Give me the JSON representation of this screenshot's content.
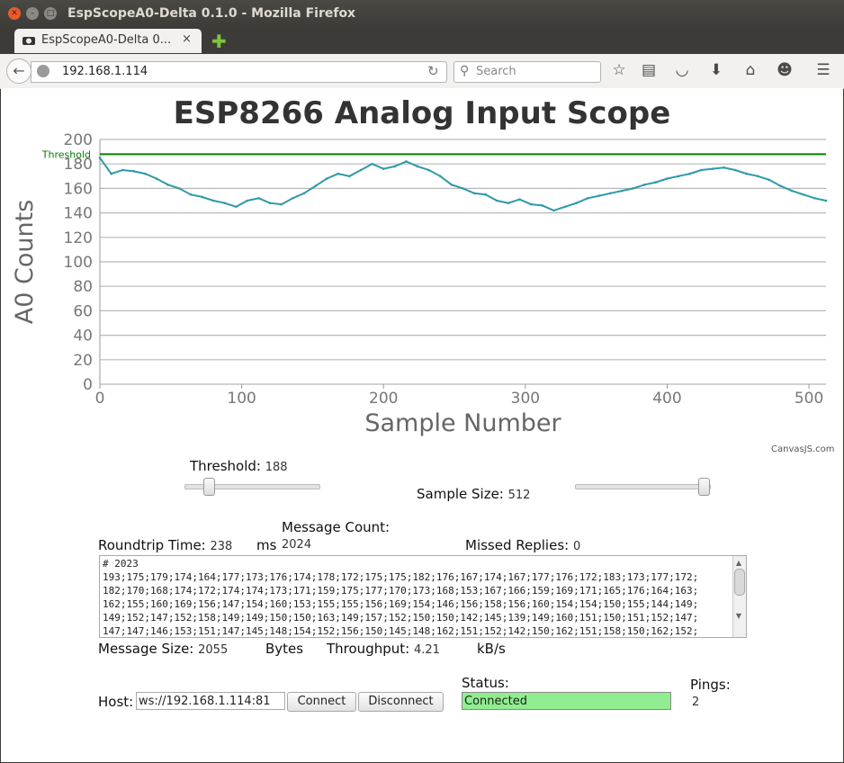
{
  "window": {
    "title": "EspScopeA0-Delta 0.1.0 - Mozilla Firefox"
  },
  "tab": {
    "title": "EspScopeA0-Delta 0...",
    "close": "×"
  },
  "navbar": {
    "url": "192.168.1.114",
    "search_placeholder": "Search"
  },
  "page": {
    "heading": "ESP8266 Analog Input Scope",
    "credit": "CanvasJS.com"
  },
  "chart_data": {
    "type": "line",
    "title": "",
    "xlabel": "Sample Number",
    "ylabel": "A0 Counts",
    "xlim": [
      0,
      512
    ],
    "ylim": [
      0,
      200
    ],
    "x_ticks": [
      "0",
      "100",
      "200",
      "300",
      "400",
      "500"
    ],
    "y_ticks": [
      "0",
      "20",
      "40",
      "60",
      "80",
      "100",
      "120",
      "140",
      "160",
      "180",
      "200"
    ],
    "grid": true,
    "series_color": "#2e9aa8",
    "threshold": {
      "label": "Threshold",
      "value": 188,
      "color": "#008000"
    },
    "series": [
      {
        "x": [
          0,
          8,
          16,
          24,
          32,
          40,
          48,
          56,
          64,
          72,
          80,
          88,
          96,
          104,
          112,
          120,
          128,
          136,
          144,
          152,
          160,
          168,
          176,
          184,
          192,
          200,
          208,
          216,
          224,
          232,
          240,
          248,
          256,
          264,
          272,
          280,
          288,
          296,
          304,
          312,
          320,
          328,
          336,
          344,
          352,
          360,
          368,
          376,
          384,
          392,
          400,
          408,
          416,
          424,
          432,
          440,
          448,
          456,
          464,
          472,
          480,
          488,
          496,
          504,
          512
        ],
        "values": [
          185,
          172,
          175,
          174,
          172,
          168,
          163,
          160,
          155,
          153,
          150,
          148,
          145,
          150,
          152,
          148,
          147,
          152,
          156,
          162,
          168,
          172,
          170,
          175,
          180,
          176,
          178,
          182,
          178,
          175,
          170,
          163,
          160,
          156,
          155,
          150,
          148,
          151,
          147,
          146,
          142,
          145,
          148,
          152,
          154,
          156,
          158,
          160,
          163,
          165,
          168,
          170,
          172,
          175,
          176,
          177,
          175,
          172,
          170,
          167,
          162,
          158,
          155,
          152,
          150
        ]
      }
    ]
  },
  "controls": {
    "threshold_label": "Threshold:",
    "threshold_value": "188",
    "threshold_level": 0.18,
    "sample_size_label": "Sample Size:",
    "sample_size_value": "512",
    "sample_size_level": 0.96
  },
  "stats": {
    "roundtrip_label": "Roundtrip Time:",
    "roundtrip_value": "238",
    "roundtrip_unit": "ms",
    "message_count_label": "Message Count:",
    "message_count_value": "2024",
    "missed_label": "Missed Replies:",
    "missed_value": "0",
    "message_size_label": "Message Size:",
    "message_size_value": "2055",
    "message_size_unit": "Bytes",
    "throughput_label": "Throughput:",
    "throughput_value": "4.21",
    "throughput_unit": "kB/s"
  },
  "log": {
    "lines": [
      "# 2023",
      "193;175;179;174;164;177;173;176;174;178;172;175;175;182;176;167;174;167;177;176;172;183;173;177;172;",
      "182;170;168;174;172;174;174;173;171;159;175;177;170;173;168;153;167;166;159;169;171;165;176;164;163;",
      "162;155;160;169;156;147;154;160;153;155;155;156;169;154;146;156;158;156;160;154;154;150;155;144;149;",
      "149;152;147;152;158;149;149;150;150;163;149;157;152;150;150;142;145;139;149;160;151;150;151;152;147;",
      "147;147;146;153;151;147;145;148;154;152;156;150;145;148;162;151;152;142;150;162;151;158;150;162;152;"
    ]
  },
  "connection": {
    "host_label": "Host:",
    "host_value": "ws://192.168.1.114:81",
    "connect_label": "Connect",
    "disconnect_label": "Disconnect",
    "status_label": "Status:",
    "status_value": "Connected",
    "pings_label": "Pings:",
    "pings_value": "2"
  }
}
